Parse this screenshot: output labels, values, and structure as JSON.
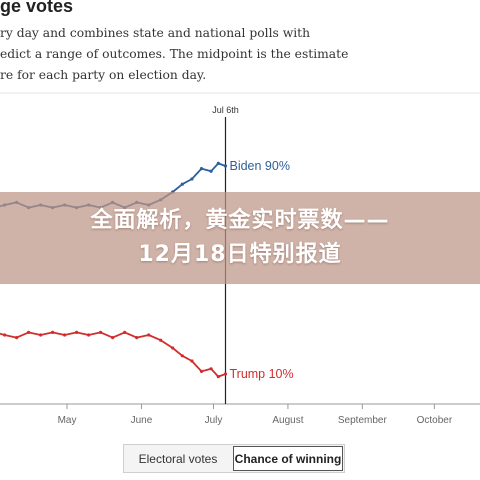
{
  "header": {
    "title": "ge votes",
    "description_lines": [
      "ry day and combines state and national polls with",
      "edict a range of outcomes. The midpoint is the estimate",
      "re for each party on election day."
    ]
  },
  "overlay": {
    "line1": "全面解析，黄金实时票数——",
    "line2": "12月18日特别报道"
  },
  "toggle": {
    "option1": "Electoral votes",
    "option2": "Chance of winning",
    "selected": "Chance of winning"
  },
  "colors": {
    "biden": "#2e5f9a",
    "trump": "#d22d2d",
    "axis": "#999999",
    "overlay": "#be9687"
  },
  "chart_data": {
    "type": "line",
    "x_range": [
      "2024-04-01",
      "2024-10-20"
    ],
    "y_range": [
      0,
      100
    ],
    "marker": {
      "date": "2024-07-06",
      "label": "Jul 6th"
    },
    "x_ticks": [
      {
        "date": "2024-05-01",
        "label": "May"
      },
      {
        "date": "2024-06-01",
        "label": "June"
      },
      {
        "date": "2024-07-01",
        "label": "July"
      },
      {
        "date": "2024-08-01",
        "label": "August"
      },
      {
        "date": "2024-09-01",
        "label": "September"
      },
      {
        "date": "2024-10-01",
        "label": "October"
      }
    ],
    "series": [
      {
        "name": "Biden",
        "end_label": "Biden 90%",
        "x": [
          "2024-04-01",
          "2024-04-05",
          "2024-04-10",
          "2024-04-15",
          "2024-04-20",
          "2024-04-25",
          "2024-04-30",
          "2024-05-05",
          "2024-05-10",
          "2024-05-15",
          "2024-05-20",
          "2024-05-25",
          "2024-05-30",
          "2024-06-04",
          "2024-06-09",
          "2024-06-14",
          "2024-06-18",
          "2024-06-22",
          "2024-06-26",
          "2024-06-30",
          "2024-07-03",
          "2024-07-06"
        ],
        "values": [
          74,
          75,
          76,
          74,
          75,
          74,
          75,
          74,
          75,
          74,
          76,
          74,
          76,
          75,
          77,
          80,
          83,
          85,
          89,
          88,
          91,
          90
        ]
      },
      {
        "name": "Trump",
        "end_label": "Trump 10%",
        "x": [
          "2024-04-01",
          "2024-04-05",
          "2024-04-10",
          "2024-04-15",
          "2024-04-20",
          "2024-04-25",
          "2024-04-30",
          "2024-05-05",
          "2024-05-10",
          "2024-05-15",
          "2024-05-20",
          "2024-05-25",
          "2024-05-30",
          "2024-06-04",
          "2024-06-09",
          "2024-06-14",
          "2024-06-18",
          "2024-06-22",
          "2024-06-26",
          "2024-06-30",
          "2024-07-03",
          "2024-07-06"
        ],
        "values": [
          26,
          25,
          24,
          26,
          25,
          26,
          25,
          26,
          25,
          26,
          24,
          26,
          24,
          25,
          23,
          20,
          17,
          15,
          11,
          12,
          9,
          10
        ]
      }
    ]
  }
}
